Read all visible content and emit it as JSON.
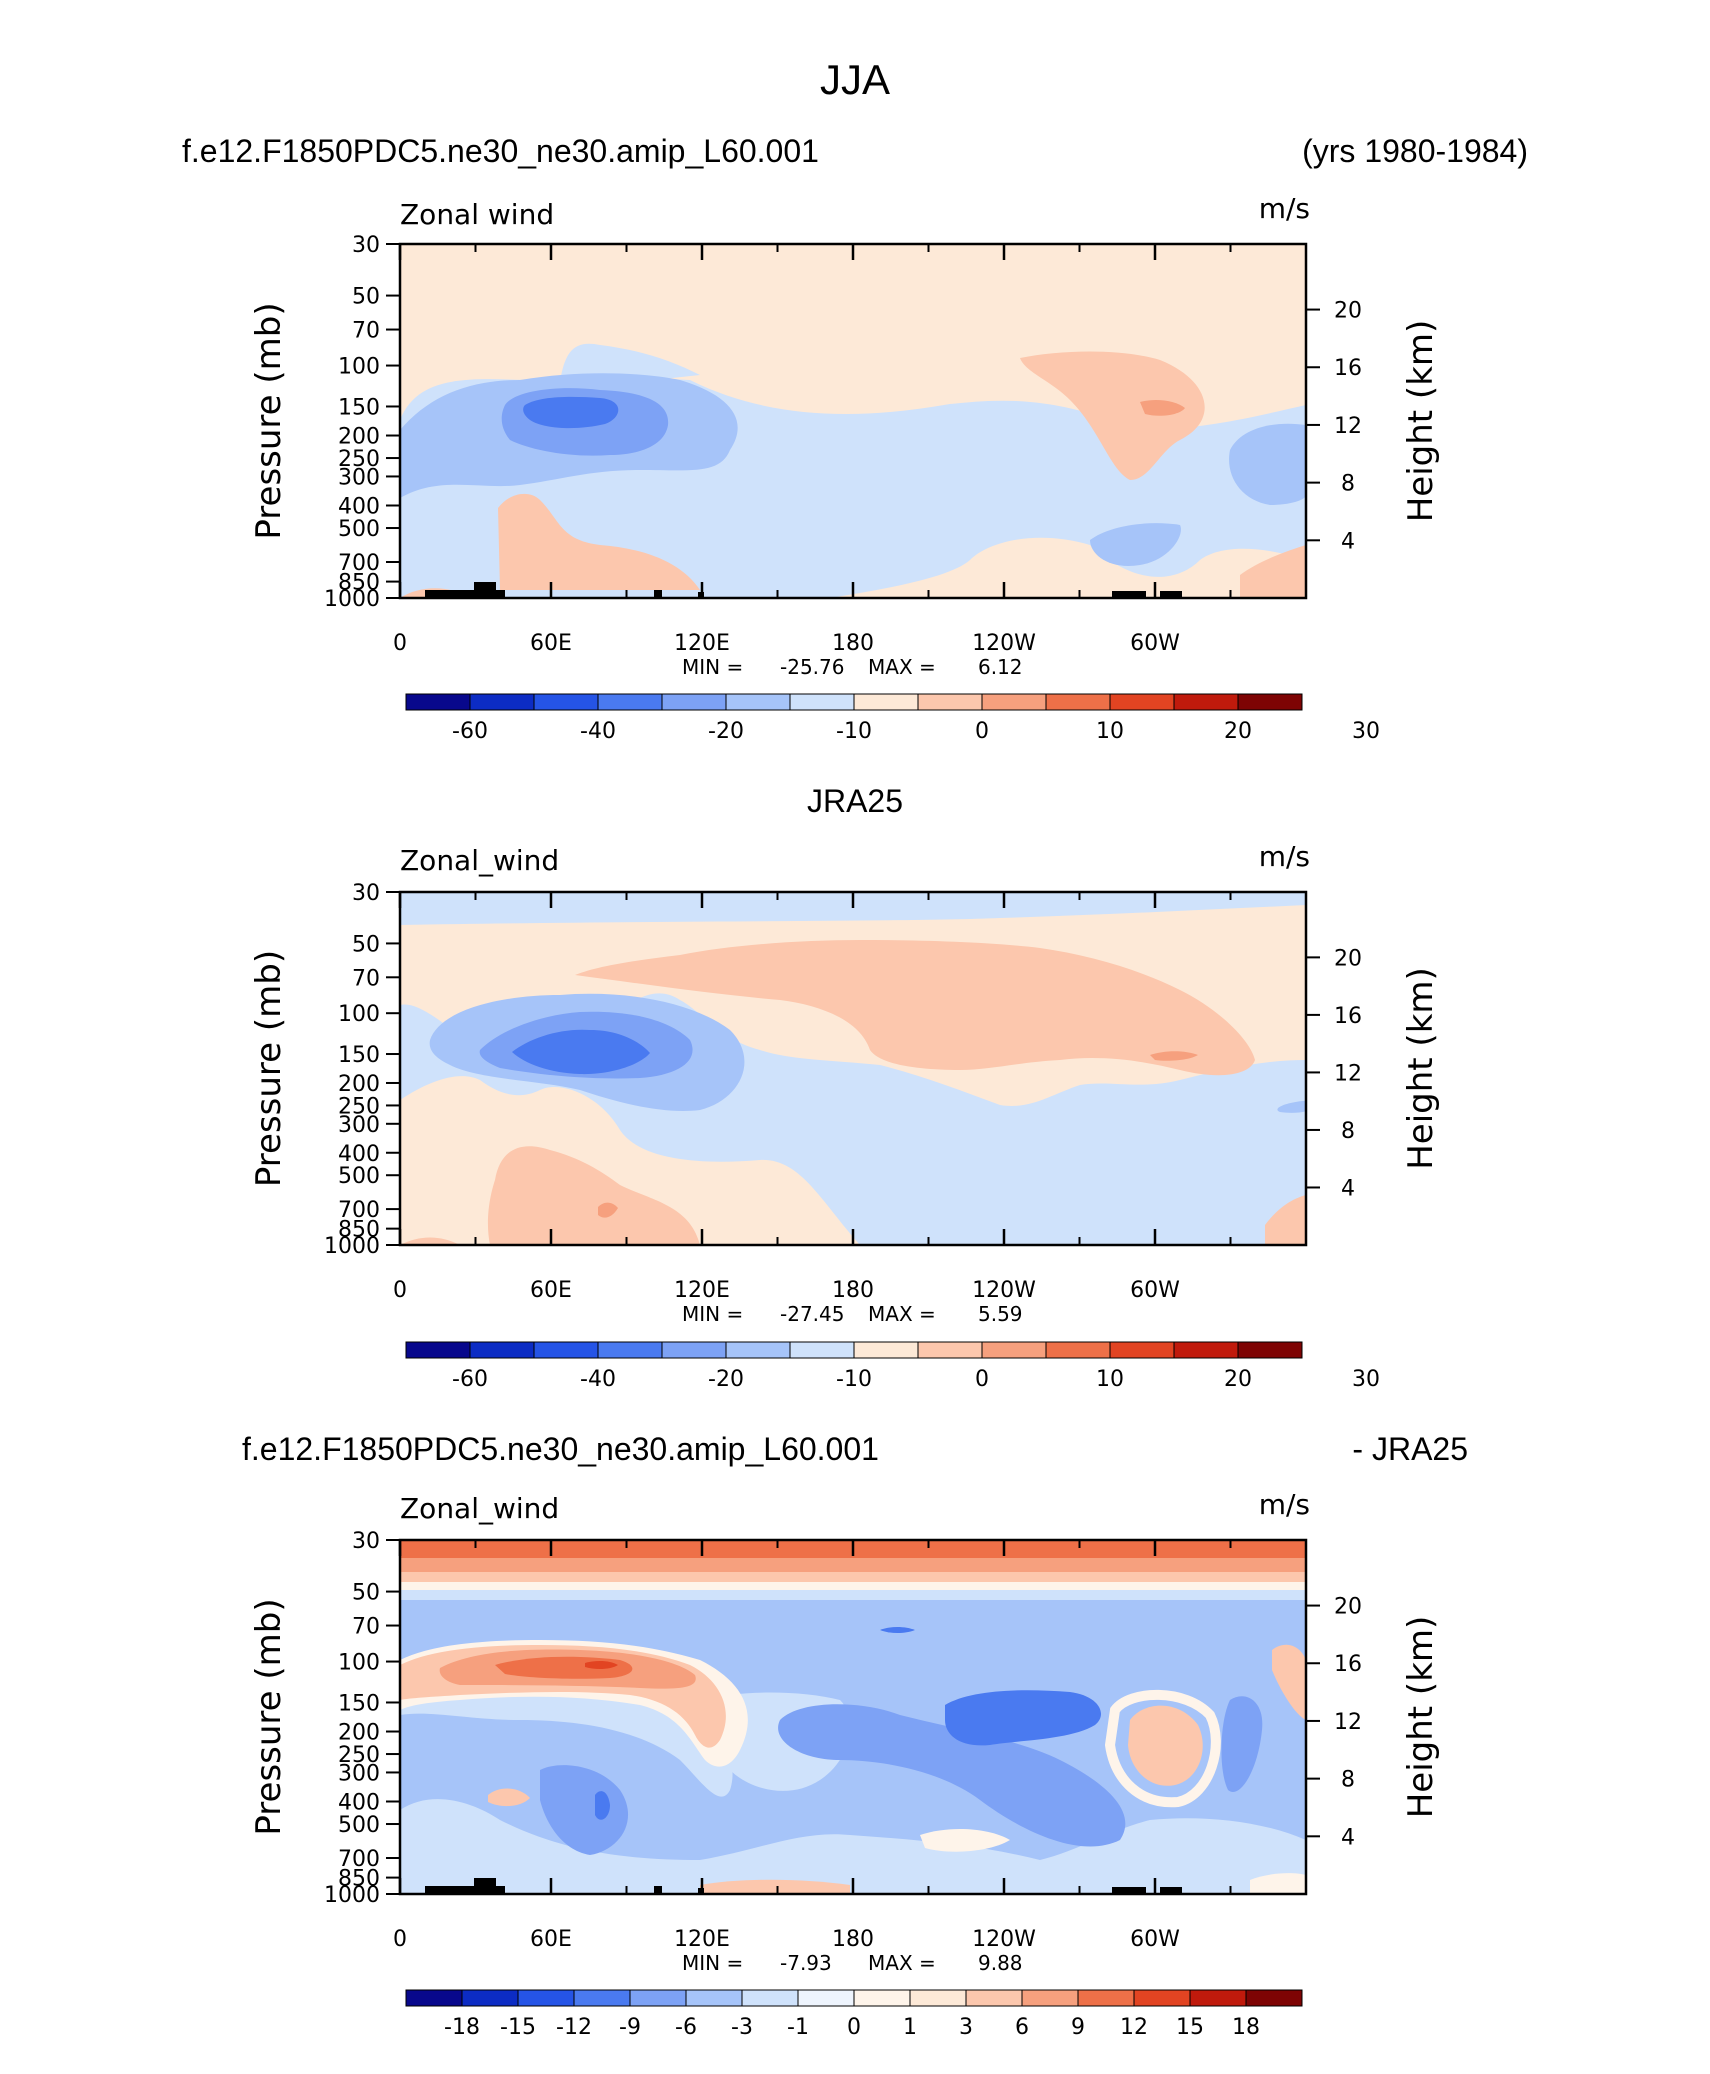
{
  "figure": {
    "title": "JJA"
  },
  "chart_data": [
    {
      "type": "heatmap",
      "header_left": "f.e12.F1850PDC5.ne30_ne30.amip_L60.001",
      "header_right": "(yrs 1980-1984)",
      "field_label": "Zonal wind",
      "units": "m/s",
      "ylabel": "Pressure (mb)",
      "ylabel_right": "Height (km)",
      "xticks": [
        "0",
        "60E",
        "120E",
        "180",
        "120W",
        "60W"
      ],
      "yticks": [
        "30",
        "50",
        "70",
        "100",
        "150",
        "200",
        "250",
        "300",
        "400",
        "500",
        "700",
        "850",
        "1000"
      ],
      "yticks_right": [
        "20",
        "16",
        "12",
        "8",
        "4"
      ],
      "stats": {
        "min_label": "MIN =",
        "min": "-25.76",
        "max_label": "MAX =",
        "max": "6.12"
      },
      "colorbar": {
        "labels": [
          "-60",
          "-40",
          "-20",
          "-10",
          "0",
          "10",
          "20",
          "30"
        ]
      }
    },
    {
      "type": "heatmap",
      "header_center": "JRA25",
      "field_label": "Zonal_wind",
      "units": "m/s",
      "ylabel": "Pressure (mb)",
      "ylabel_right": "Height (km)",
      "xticks": [
        "0",
        "60E",
        "120E",
        "180",
        "120W",
        "60W"
      ],
      "yticks": [
        "30",
        "50",
        "70",
        "100",
        "150",
        "200",
        "250",
        "300",
        "400",
        "500",
        "700",
        "850",
        "1000"
      ],
      "yticks_right": [
        "20",
        "16",
        "12",
        "8",
        "4"
      ],
      "stats": {
        "min_label": "MIN =",
        "min": "-27.45",
        "max_label": "MAX =",
        "max": "5.59"
      },
      "colorbar": {
        "labels": [
          "-60",
          "-40",
          "-20",
          "-10",
          "0",
          "10",
          "20",
          "30"
        ]
      }
    },
    {
      "type": "heatmap",
      "header_left": "f.e12.F1850PDC5.ne30_ne30.amip_L60.001",
      "header_right": "- JRA25",
      "field_label": "Zonal_wind",
      "units": "m/s",
      "ylabel": "Pressure (mb)",
      "ylabel_right": "Height (km)",
      "xticks": [
        "0",
        "60E",
        "120E",
        "180",
        "120W",
        "60W"
      ],
      "yticks": [
        "30",
        "50",
        "70",
        "100",
        "150",
        "200",
        "250",
        "300",
        "400",
        "500",
        "700",
        "850",
        "1000"
      ],
      "yticks_right": [
        "20",
        "16",
        "12",
        "8",
        "4"
      ],
      "stats": {
        "min_label": "MIN =",
        "min": "-7.93",
        "max_label": "MAX =",
        "max": "9.88"
      },
      "colorbar": {
        "labels": [
          "-18",
          "-15",
          "-12",
          "-9",
          "-6",
          "-3",
          "-1",
          "0",
          "1",
          "3",
          "6",
          "9",
          "12",
          "15",
          "18"
        ]
      }
    }
  ],
  "colors": {
    "bwr": [
      "#08088c",
      "#0c2cc4",
      "#2554e6",
      "#4a7af0",
      "#7da2f5",
      "#a6c4f9",
      "#cfe2fb",
      "#fde9d7",
      "#fcc7ad",
      "#f6a07e",
      "#ee7048",
      "#e24422",
      "#c01a0c",
      "#7e0404"
    ],
    "bwr_diff": [
      "#08088c",
      "#0c2cc4",
      "#2554e6",
      "#4a7af0",
      "#7da2f5",
      "#a6c4f9",
      "#cfe2fb",
      "#eef4fd",
      "#fef4ea",
      "#fde9d7",
      "#fcc7ad",
      "#f6a07e",
      "#ee7048",
      "#e24422",
      "#c01a0c",
      "#7e0404"
    ],
    "topography": "#000000"
  }
}
